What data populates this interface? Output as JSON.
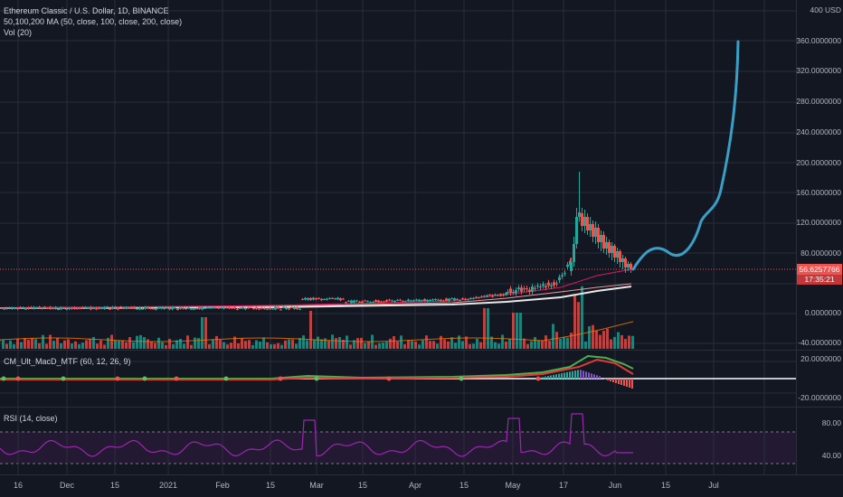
{
  "legend": {
    "symbol": "Ethereum Classic / U.S. Dollar, 1D, BINANCE",
    "ma": "50,100,200 MA (50, close, 100, close, 200, close)",
    "vol": "Vol (20)",
    "macd": "CM_Ult_MacD_MTF (60, 12, 26, 9)",
    "rsi": "RSI (14, close)"
  },
  "price_axis": {
    "currency_top": "400 USD",
    "ticks": [
      "360.0000000",
      "320.0000000",
      "280.0000000",
      "240.0000000",
      "200.0000000",
      "160.0000000",
      "120.0000000",
      "80.0000000",
      "0.0000000",
      "-40.0000000"
    ],
    "last_price": "56.6257766",
    "countdown": "17:35:21",
    "colors": {
      "last_price_bg": "#ef5350",
      "countdown_bg": "#c2383a"
    }
  },
  "macd_axis": {
    "ticks": [
      "20.0000000",
      "-20.0000000"
    ]
  },
  "rsi_axis": {
    "ticks": [
      "80.00",
      "40.00"
    ]
  },
  "time_axis": {
    "labels": [
      "16",
      "Dec",
      "15",
      "2021",
      "Feb",
      "15",
      "Mar",
      "15",
      "Apr",
      "15",
      "May",
      "17",
      "Jun",
      "15",
      "Jul"
    ]
  },
  "colors": {
    "bg": "#131722",
    "grid": "#2a2e39",
    "up": "#26a69a",
    "down": "#ef5350",
    "forecast": "#3a9fc6",
    "rsi": "#9c27b0"
  }
}
